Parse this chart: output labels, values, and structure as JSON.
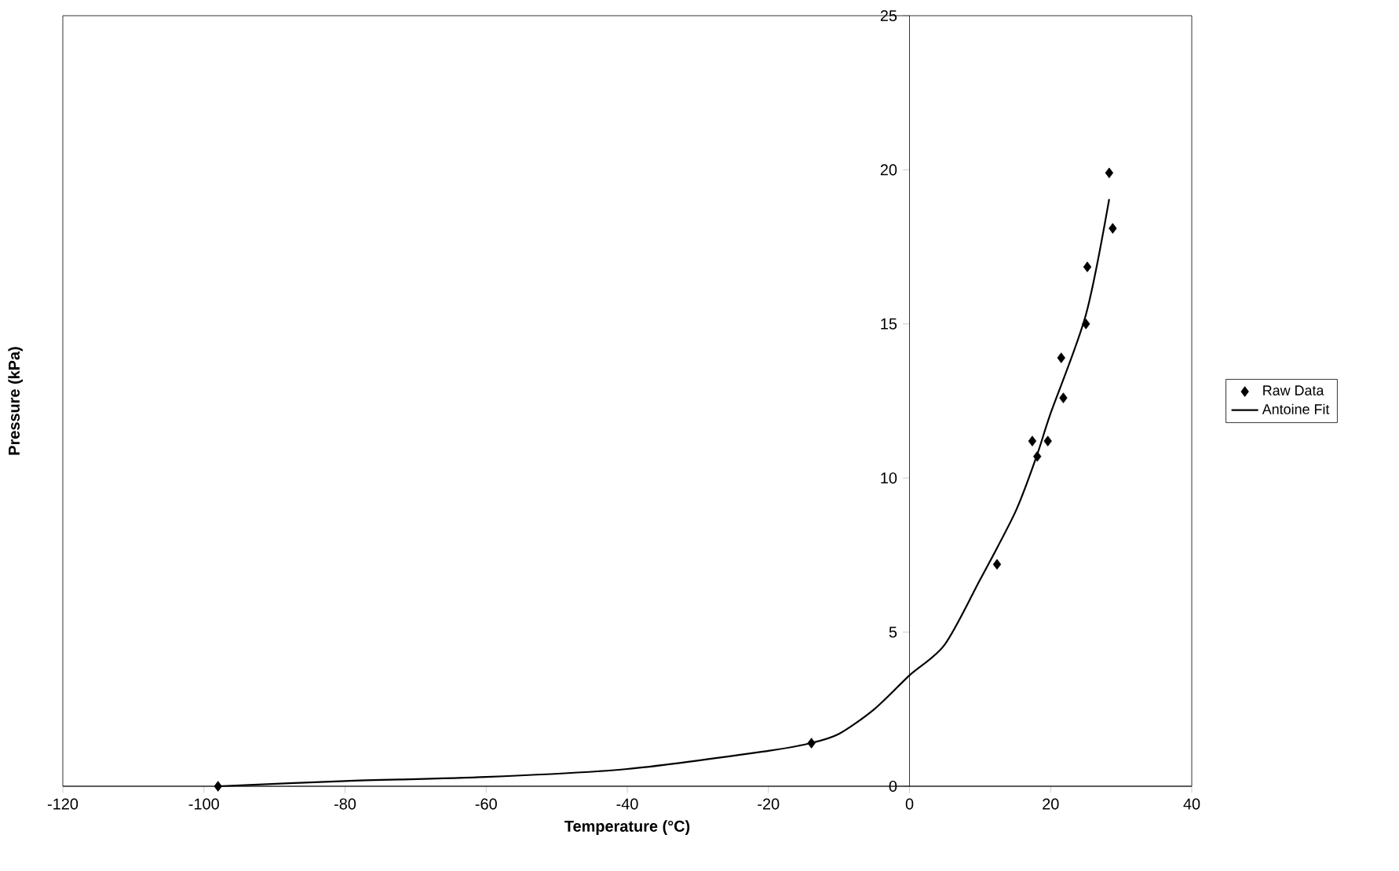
{
  "chart_data": {
    "type": "scatter",
    "xlabel": "Temperature (°C)",
    "ylabel": "Pressure (kPa)",
    "xlim": [
      -120,
      40
    ],
    "xticks": [
      -120,
      -100,
      -80,
      -60,
      -40,
      -20,
      0,
      20,
      40
    ],
    "ylim": [
      0,
      25
    ],
    "yticks": [
      0,
      5,
      10,
      15,
      20,
      25
    ],
    "grid": false,
    "legend": "right",
    "series": [
      {
        "name": "Raw Data",
        "marker": "diamond",
        "color": "#000000",
        "x": [
          -98,
          -13.9,
          12.4,
          17.4,
          18.1,
          19.6,
          21.5,
          21.8,
          25.0,
          25.2,
          28.3,
          28.8
        ],
        "values": [
          0,
          1.4,
          7.2,
          11.2,
          10.7,
          11.2,
          13.9,
          12.6,
          15.0,
          16.85,
          19.9,
          18.1
        ]
      },
      {
        "name": "Antoine Fit",
        "type": "line",
        "marker": "none",
        "line_style": "solid",
        "color": "#000000",
        "x": [
          -98,
          -80,
          -60,
          -40,
          -20,
          -14,
          -10,
          -5,
          0,
          5,
          10,
          15,
          18,
          20,
          25,
          28.3
        ],
        "values": [
          0,
          0.17,
          0.3,
          0.56,
          1.15,
          1.4,
          1.7,
          2.5,
          3.6,
          4.6,
          6.7,
          8.9,
          10.7,
          12.1,
          15.3,
          19.05
        ]
      }
    ]
  }
}
